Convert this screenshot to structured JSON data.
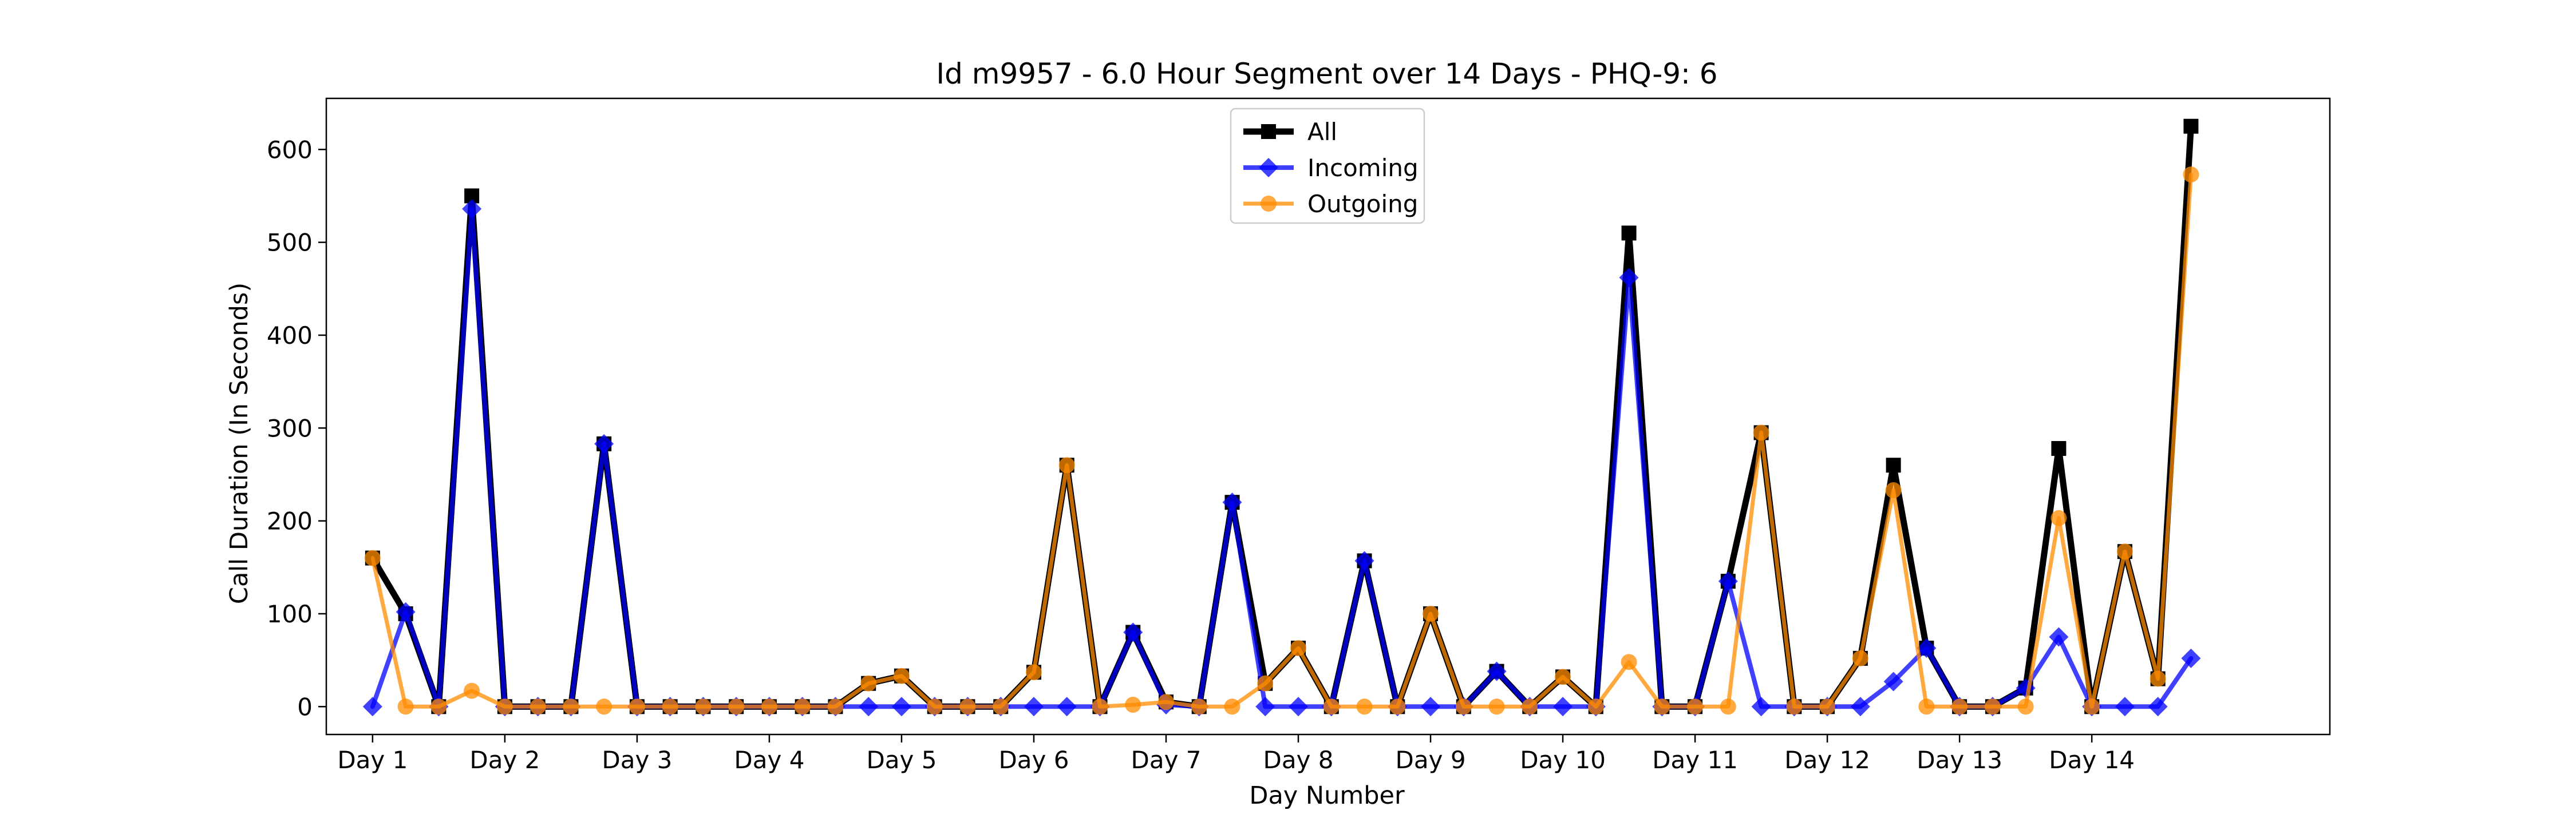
{
  "chart_data": {
    "type": "line",
    "title": "Id m9957 - 6.0 Hour Segment over 14 Days - PHQ-9: 6",
    "xlabel": "Day Number",
    "ylabel": "Call Duration (In Seconds)",
    "xlim": [
      -0.35,
      14.8
    ],
    "ylim": [
      -30,
      655
    ],
    "xticks": [
      {
        "value": 0,
        "label": "Day 1"
      },
      {
        "value": 1,
        "label": "Day 2"
      },
      {
        "value": 2,
        "label": "Day 3"
      },
      {
        "value": 3,
        "label": "Day 4"
      },
      {
        "value": 4,
        "label": "Day 5"
      },
      {
        "value": 5,
        "label": "Day 6"
      },
      {
        "value": 6,
        "label": "Day 7"
      },
      {
        "value": 7,
        "label": "Day 8"
      },
      {
        "value": 8,
        "label": "Day 9"
      },
      {
        "value": 9,
        "label": "Day 10"
      },
      {
        "value": 10,
        "label": "Day 11"
      },
      {
        "value": 11,
        "label": "Day 12"
      },
      {
        "value": 12,
        "label": "Day 13"
      },
      {
        "value": 13,
        "label": "Day 14"
      }
    ],
    "yticks": [
      0,
      100,
      200,
      300,
      400,
      500,
      600
    ],
    "legend_position": "top-center",
    "x": [
      0,
      0.25,
      0.5,
      0.75,
      1,
      1.25,
      1.5,
      1.75,
      2,
      2.25,
      2.5,
      2.75,
      3,
      3.25,
      3.5,
      3.75,
      4,
      4.25,
      4.5,
      4.75,
      5,
      5.25,
      5.5,
      5.75,
      6,
      6.25,
      6.5,
      6.75,
      7,
      7.25,
      7.5,
      7.75,
      8,
      8.25,
      8.5,
      8.75,
      9,
      9.25,
      9.5,
      9.75,
      10,
      10.25,
      10.5,
      10.75,
      11,
      11.25,
      11.5,
      11.75,
      12,
      12.25,
      12.5,
      12.75,
      13,
      13.25,
      13.5,
      13.75
    ],
    "series": [
      {
        "name": "All",
        "color": "#000000",
        "marker": "square",
        "values": [
          160,
          100,
          0,
          550,
          0,
          0,
          0,
          283,
          0,
          0,
          0,
          0,
          0,
          0,
          0,
          25,
          33,
          0,
          0,
          0,
          37,
          260,
          0,
          80,
          5,
          0,
          220,
          25,
          63,
          0,
          157,
          0,
          100,
          0,
          38,
          0,
          32,
          0,
          510,
          0,
          0,
          135,
          295,
          0,
          0,
          52,
          260,
          63,
          0,
          0,
          20,
          278,
          0,
          167,
          30,
          625
        ]
      },
      {
        "name": "Incoming",
        "color": "#0000ff",
        "marker": "diamond",
        "values": [
          0,
          102,
          0,
          536,
          0,
          0,
          0,
          283,
          0,
          0,
          0,
          0,
          0,
          0,
          0,
          0,
          0,
          0,
          0,
          0,
          0,
          0,
          0,
          80,
          2,
          0,
          220,
          0,
          0,
          0,
          157,
          0,
          0,
          0,
          38,
          0,
          0,
          0,
          462,
          0,
          0,
          135,
          0,
          0,
          0,
          0,
          27,
          63,
          0,
          0,
          20,
          75,
          0,
          0,
          0,
          52
        ]
      },
      {
        "name": "Outgoing",
        "color": "#ff8c00",
        "marker": "circle",
        "values": [
          160,
          0,
          0,
          17,
          0,
          0,
          0,
          0,
          0,
          0,
          0,
          0,
          0,
          0,
          0,
          25,
          33,
          0,
          0,
          0,
          37,
          260,
          0,
          2,
          5,
          0,
          0,
          25,
          63,
          0,
          0,
          0,
          100,
          0,
          0,
          0,
          32,
          0,
          48,
          0,
          0,
          0,
          295,
          0,
          0,
          52,
          233,
          0,
          0,
          0,
          0,
          203,
          0,
          167,
          30,
          573
        ]
      }
    ]
  }
}
